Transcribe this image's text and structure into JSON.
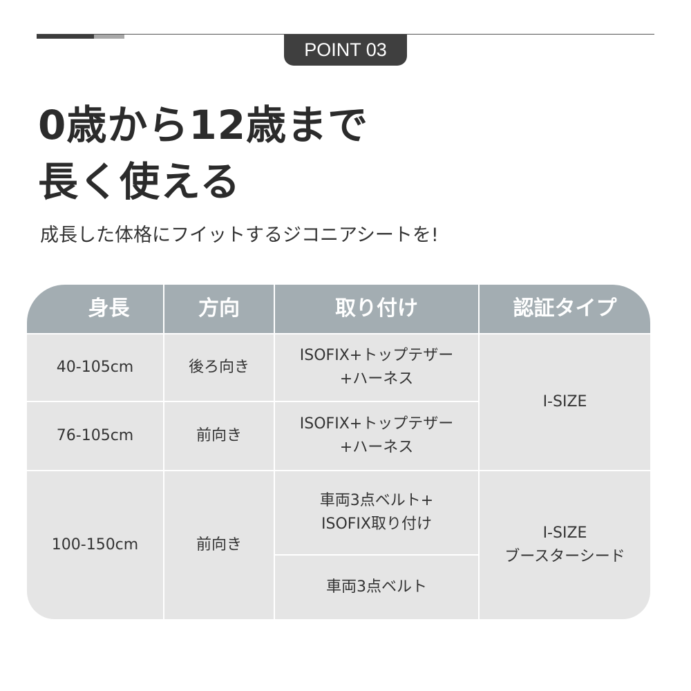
{
  "point_label": "POINT 03",
  "title_lines": [
    "0歳から12歳まで",
    "長く使える"
  ],
  "subtitle": "成長した体格にフイットするジコニアシートを!",
  "colors": {
    "header": "#a3adb2",
    "cell": "#e5e5e5",
    "badge": "#3f3f3f"
  },
  "table": {
    "headers": [
      "身長",
      "方向",
      "取り付け",
      "認証タイプ"
    ],
    "rows": [
      {
        "height": "40-105cm",
        "direction": "後ろ向き",
        "install": [
          "ISOFIX+トップテザー",
          "+ハーネス"
        ]
      },
      {
        "height": "76-105cm",
        "direction": "前向き",
        "install": [
          "ISOFIX+トップテザー",
          "+ハーネス"
        ]
      },
      {
        "height": "100-150cm",
        "direction": "前向き",
        "install": [
          "車両3点ベルト+",
          "ISOFIX取り付け"
        ],
        "install2": "車両3点ベルト"
      }
    ],
    "cert": [
      [
        "I-SIZE"
      ],
      [
        "I-SIZE",
        "ブースターシード"
      ]
    ]
  }
}
